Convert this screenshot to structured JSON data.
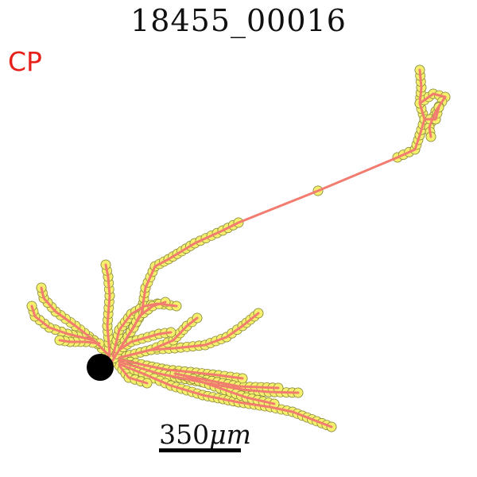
{
  "title": "18455_00016",
  "region_label": "CP",
  "scale": {
    "label_prefix": "350",
    "label_unit": "μm"
  },
  "colors": {
    "region_label": "#e8201c",
    "neurite": "#f27c70",
    "node_fill": "#f5ef6e",
    "node_stroke": "#8a8a3a",
    "soma": "#000000"
  },
  "icons": {
    "soma": "soma-circle",
    "node": "node-circle"
  }
}
